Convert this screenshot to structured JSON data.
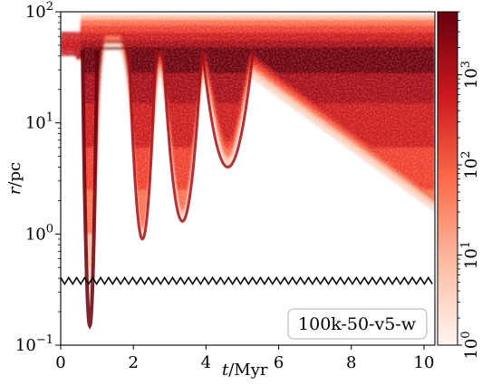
{
  "chart_data": [
    {
      "type": "heatmap",
      "title": "",
      "xlabel_var": "t",
      "xlabel_unit": "/Myr",
      "ylabel_var": "r",
      "ylabel_unit": "/pc",
      "xlim": [
        0,
        10.3
      ],
      "ylim": [
        0.1,
        100
      ],
      "y_scale": "log",
      "x_ticks": [
        "0",
        "2",
        "4",
        "6",
        "8",
        "10"
      ],
      "y_tick_mantissa": "10",
      "y_tick_exponents": [
        "−1",
        "0",
        "1",
        "2"
      ],
      "annotation": "100k-50-v5-w",
      "annotation_position": "bottom-right",
      "colormap": "Reds",
      "color_scale": "log",
      "outer_radius_pc": 50,
      "collapse_minima": [
        {
          "t": 0.8,
          "r_min": 0.15
        },
        {
          "t": 2.25,
          "r_min": 0.9
        },
        {
          "t": 3.35,
          "r_min": 1.3
        },
        {
          "t": 4.6,
          "r_min": 4.0
        }
      ],
      "binary_orbit": {
        "r_mean": 0.38,
        "r_amplitude": 0.025,
        "period_myr": 0.22,
        "color": "#000000"
      }
    },
    {
      "type": "colorbar",
      "scale": "log",
      "range": [
        1,
        5000
      ],
      "tick_mantissa": "10",
      "tick_exponents": [
        "0",
        "1",
        "2",
        "3"
      ],
      "colors": [
        "#fff5f0",
        "#fcbba1",
        "#fb6a4a",
        "#cb181d",
        "#67000d"
      ]
    }
  ]
}
